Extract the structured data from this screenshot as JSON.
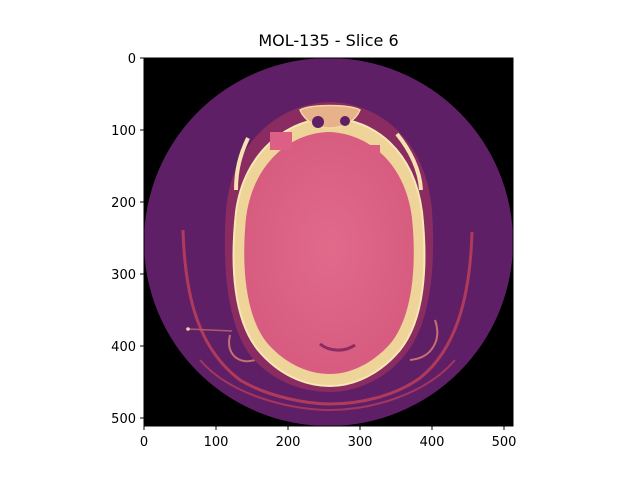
{
  "figure": {
    "title": "MOL-135 - Slice 6"
  },
  "axes": {
    "x_ticks": [
      0,
      100,
      200,
      300,
      400,
      500
    ],
    "y_ticks": [
      0,
      100,
      200,
      300,
      400,
      500
    ],
    "x_range": [
      0,
      512
    ],
    "y_range": [
      0,
      512
    ],
    "y_inverted": true
  },
  "image": {
    "modality_look": "axial head CT slice with circular field of view",
    "colormap": "magma-like",
    "colors": {
      "background_outside": "#000000",
      "fov_tissue": "#5e1f66",
      "soft_tissue": "#8a2b62",
      "skin_edge": "#b33a64",
      "brain": "#dd5f85",
      "bone": "#efd49a",
      "bone_edge": "#f7e7b6"
    }
  }
}
